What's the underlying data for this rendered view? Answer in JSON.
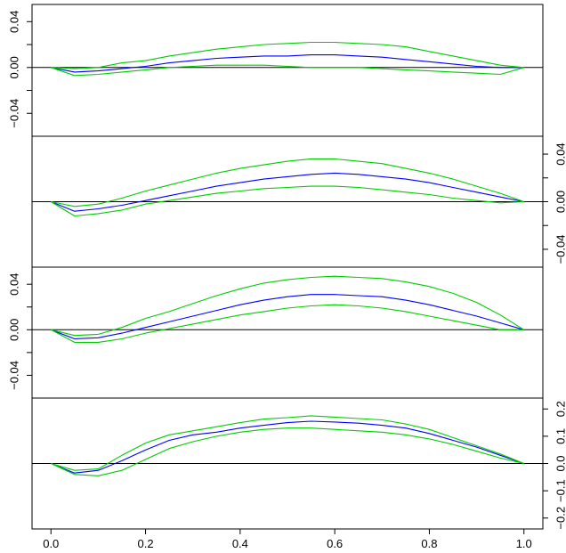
{
  "chart_data": [
    {
      "type": "line",
      "panel": 1,
      "ylim": [
        -0.06,
        0.055
      ],
      "xlim": [
        -0.04,
        1.04
      ],
      "y_axis_side": "left",
      "y_ticks": [
        -0.04,
        0.0,
        0.04
      ],
      "y_tick_labels": [
        "−0.04",
        "0.00",
        "0.04"
      ],
      "y_minor_ticks": [
        -0.02,
        0.02
      ],
      "x_tick_labels_shown": false,
      "reference_line": 0,
      "series": [
        {
          "role": "estimate",
          "color": "#0000ff",
          "x": [
            0,
            0.05,
            0.1,
            0.15,
            0.2,
            0.25,
            0.3,
            0.35,
            0.4,
            0.45,
            0.5,
            0.55,
            0.6,
            0.65,
            0.7,
            0.75,
            0.8,
            0.85,
            0.9,
            0.95,
            1.0
          ],
          "y": [
            0,
            -0.004,
            -0.003,
            -0.001,
            0.001,
            0.004,
            0.006,
            0.008,
            0.009,
            0.01,
            0.01,
            0.011,
            0.011,
            0.01,
            0.009,
            0.007,
            0.005,
            0.003,
            0.001,
            0,
            0
          ]
        },
        {
          "role": "upper-band",
          "color": "#00cc00",
          "x": [
            0,
            0.05,
            0.1,
            0.15,
            0.2,
            0.25,
            0.3,
            0.35,
            0.4,
            0.45,
            0.5,
            0.55,
            0.6,
            0.65,
            0.7,
            0.75,
            0.8,
            0.85,
            0.9,
            0.95,
            1.0
          ],
          "y": [
            0,
            -0.001,
            0,
            0.004,
            0.006,
            0.01,
            0.013,
            0.016,
            0.018,
            0.02,
            0.021,
            0.022,
            0.022,
            0.021,
            0.02,
            0.018,
            0.014,
            0.01,
            0.006,
            0.002,
            0
          ]
        },
        {
          "role": "lower-band",
          "color": "#00cc00",
          "x": [
            0,
            0.05,
            0.1,
            0.15,
            0.2,
            0.25,
            0.3,
            0.35,
            0.4,
            0.45,
            0.5,
            0.55,
            0.6,
            0.65,
            0.7,
            0.75,
            0.8,
            0.85,
            0.9,
            0.95,
            1.0
          ],
          "y": [
            0,
            -0.007,
            -0.006,
            -0.004,
            -0.002,
            0.0,
            0.001,
            0.002,
            0.002,
            0.002,
            0.001,
            0.0,
            0.0,
            0.0,
            -0.001,
            -0.002,
            -0.003,
            -0.004,
            -0.005,
            -0.006,
            0
          ]
        }
      ]
    },
    {
      "type": "line",
      "panel": 2,
      "ylim": [
        -0.055,
        0.055
      ],
      "xlim": [
        -0.04,
        1.04
      ],
      "y_axis_side": "right",
      "y_ticks": [
        -0.04,
        0.0,
        0.04
      ],
      "y_tick_labels": [
        "−0.04",
        "0.00",
        "0.04"
      ],
      "y_minor_ticks": [
        -0.02,
        0.02
      ],
      "x_tick_labels_shown": false,
      "reference_line": 0,
      "series": [
        {
          "role": "estimate",
          "color": "#0000ff",
          "x": [
            0,
            0.05,
            0.1,
            0.15,
            0.2,
            0.25,
            0.3,
            0.35,
            0.4,
            0.45,
            0.5,
            0.55,
            0.6,
            0.65,
            0.7,
            0.75,
            0.8,
            0.85,
            0.9,
            0.95,
            1.0
          ],
          "y": [
            0,
            -0.008,
            -0.006,
            -0.003,
            0.001,
            0.005,
            0.009,
            0.013,
            0.016,
            0.019,
            0.021,
            0.023,
            0.024,
            0.023,
            0.021,
            0.019,
            0.016,
            0.012,
            0.008,
            0.004,
            0
          ]
        },
        {
          "role": "upper-band",
          "color": "#00cc00",
          "x": [
            0,
            0.05,
            0.1,
            0.15,
            0.2,
            0.25,
            0.3,
            0.35,
            0.4,
            0.45,
            0.5,
            0.55,
            0.6,
            0.65,
            0.7,
            0.75,
            0.8,
            0.85,
            0.9,
            0.95,
            1.0
          ],
          "y": [
            0,
            -0.004,
            -0.002,
            0.003,
            0.009,
            0.014,
            0.019,
            0.024,
            0.028,
            0.031,
            0.034,
            0.036,
            0.036,
            0.034,
            0.032,
            0.028,
            0.024,
            0.019,
            0.013,
            0.007,
            0
          ]
        },
        {
          "role": "lower-band",
          "color": "#00cc00",
          "x": [
            0,
            0.05,
            0.1,
            0.15,
            0.2,
            0.25,
            0.3,
            0.35,
            0.4,
            0.45,
            0.5,
            0.55,
            0.6,
            0.65,
            0.7,
            0.75,
            0.8,
            0.85,
            0.9,
            0.95,
            1.0
          ],
          "y": [
            0,
            -0.012,
            -0.01,
            -0.007,
            -0.002,
            0.001,
            0.004,
            0.007,
            0.009,
            0.011,
            0.012,
            0.013,
            0.013,
            0.012,
            0.01,
            0.008,
            0.006,
            0.003,
            0.001,
            -0.001,
            0
          ]
        }
      ]
    },
    {
      "type": "line",
      "panel": 3,
      "ylim": [
        -0.06,
        0.055
      ],
      "xlim": [
        -0.04,
        1.04
      ],
      "y_axis_side": "left",
      "y_ticks": [
        -0.04,
        0.0,
        0.04
      ],
      "y_tick_labels": [
        "−0.04",
        "0.00",
        "0.04"
      ],
      "y_minor_ticks": [
        -0.02,
        0.02
      ],
      "x_tick_labels_shown": false,
      "reference_line": 0,
      "series": [
        {
          "role": "estimate",
          "color": "#0000ff",
          "x": [
            0,
            0.05,
            0.1,
            0.15,
            0.2,
            0.25,
            0.3,
            0.35,
            0.4,
            0.45,
            0.5,
            0.55,
            0.6,
            0.65,
            0.7,
            0.75,
            0.8,
            0.85,
            0.9,
            0.95,
            1.0
          ],
          "y": [
            0,
            -0.008,
            -0.007,
            -0.003,
            0.002,
            0.007,
            0.012,
            0.017,
            0.022,
            0.026,
            0.029,
            0.031,
            0.031,
            0.03,
            0.029,
            0.026,
            0.022,
            0.017,
            0.012,
            0.006,
            0
          ]
        },
        {
          "role": "upper-band",
          "color": "#00cc00",
          "x": [
            0,
            0.05,
            0.1,
            0.15,
            0.2,
            0.25,
            0.3,
            0.35,
            0.4,
            0.45,
            0.5,
            0.55,
            0.6,
            0.65,
            0.7,
            0.75,
            0.8,
            0.85,
            0.9,
            0.95,
            1.0
          ],
          "y": [
            0,
            -0.005,
            -0.004,
            0.002,
            0.01,
            0.016,
            0.023,
            0.03,
            0.036,
            0.041,
            0.044,
            0.046,
            0.047,
            0.046,
            0.045,
            0.042,
            0.038,
            0.032,
            0.024,
            0.013,
            0
          ]
        },
        {
          "role": "lower-band",
          "color": "#00cc00",
          "x": [
            0,
            0.05,
            0.1,
            0.15,
            0.2,
            0.25,
            0.3,
            0.35,
            0.4,
            0.45,
            0.5,
            0.55,
            0.6,
            0.65,
            0.7,
            0.75,
            0.8,
            0.85,
            0.9,
            0.95,
            1.0
          ],
          "y": [
            0,
            -0.011,
            -0.011,
            -0.008,
            -0.003,
            0.001,
            0.005,
            0.009,
            0.013,
            0.016,
            0.019,
            0.021,
            0.022,
            0.021,
            0.019,
            0.016,
            0.012,
            0.008,
            0.004,
            0.0,
            0
          ]
        }
      ]
    },
    {
      "type": "line",
      "panel": 4,
      "ylim": [
        -0.24,
        0.24
      ],
      "xlim": [
        -0.04,
        1.04
      ],
      "y_axis_side": "right",
      "y_ticks": [
        -0.2,
        -0.1,
        0.0,
        0.1,
        0.2
      ],
      "y_tick_labels": [
        "−0.2",
        "−0.1",
        "0.0",
        "0.1",
        "0.2"
      ],
      "x_ticks": [
        0.0,
        0.2,
        0.4,
        0.6,
        0.8,
        1.0
      ],
      "x_tick_labels": [
        "0.0",
        "0.2",
        "0.4",
        "0.6",
        "0.8",
        "1.0"
      ],
      "x_tick_labels_shown": true,
      "reference_line": 0,
      "series": [
        {
          "role": "estimate",
          "color": "#0000ff",
          "x": [
            0,
            0.05,
            0.1,
            0.15,
            0.2,
            0.25,
            0.3,
            0.35,
            0.4,
            0.45,
            0.5,
            0.55,
            0.6,
            0.65,
            0.7,
            0.75,
            0.8,
            0.85,
            0.9,
            0.95,
            1.0
          ],
          "y": [
            0,
            -0.035,
            -0.025,
            0.01,
            0.05,
            0.085,
            0.105,
            0.115,
            0.13,
            0.14,
            0.15,
            0.155,
            0.152,
            0.148,
            0.14,
            0.13,
            0.11,
            0.085,
            0.06,
            0.03,
            0
          ]
        },
        {
          "role": "upper-band",
          "color": "#00cc00",
          "x": [
            0,
            0.05,
            0.1,
            0.15,
            0.2,
            0.25,
            0.3,
            0.35,
            0.4,
            0.45,
            0.5,
            0.55,
            0.6,
            0.65,
            0.7,
            0.75,
            0.8,
            0.85,
            0.9,
            0.95,
            1.0
          ],
          "y": [
            0,
            -0.025,
            -0.02,
            0.03,
            0.075,
            0.105,
            0.12,
            0.135,
            0.15,
            0.163,
            0.168,
            0.175,
            0.17,
            0.165,
            0.16,
            0.145,
            0.125,
            0.095,
            0.065,
            0.035,
            0
          ]
        },
        {
          "role": "lower-band",
          "color": "#00cc00",
          "x": [
            0,
            0.05,
            0.1,
            0.15,
            0.2,
            0.25,
            0.3,
            0.35,
            0.4,
            0.45,
            0.5,
            0.55,
            0.6,
            0.65,
            0.7,
            0.75,
            0.8,
            0.85,
            0.9,
            0.95,
            1.0
          ],
          "y": [
            0,
            -0.04,
            -0.045,
            -0.025,
            0.015,
            0.055,
            0.08,
            0.1,
            0.115,
            0.125,
            0.13,
            0.13,
            0.125,
            0.12,
            0.115,
            0.105,
            0.09,
            0.07,
            0.045,
            0.02,
            0
          ]
        }
      ]
    }
  ]
}
